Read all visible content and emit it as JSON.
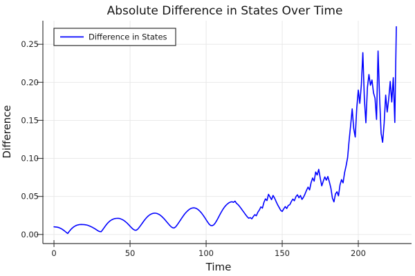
{
  "title": "Absolute Difference in States Over Time",
  "axes": {
    "x_label": "Time",
    "y_label": "Difference"
  },
  "legend": {
    "label": "Difference in States"
  },
  "colors": {
    "line": "#0000ff",
    "grid": "#e6e6e6",
    "axis": "#383838",
    "text": "#212121",
    "background": "#ffffff"
  },
  "chart_data": {
    "type": "line",
    "title": "Absolute Difference in States Over Time",
    "xlabel": "Time",
    "ylabel": "Difference",
    "xlim": [
      -7.3,
      235
    ],
    "ylim": [
      -0.012,
      0.281
    ],
    "x_ticks": [
      0,
      50,
      100,
      150,
      200
    ],
    "x_tick_labels": [
      "0",
      "50",
      "100",
      "150",
      "200"
    ],
    "y_ticks": [
      0,
      0.05,
      0.1,
      0.15,
      0.2,
      0.25
    ],
    "y_tick_labels": [
      "0.00",
      "0.05",
      "0.10",
      "0.15",
      "0.20",
      "0.25"
    ],
    "grid": true,
    "legend_position": "top-left",
    "series": [
      {
        "name": "Difference in States",
        "color": "#0000ff",
        "t_start": 0,
        "t_step": 1,
        "values": [
          0.01,
          0.0099,
          0.0096,
          0.0091,
          0.0083,
          0.0073,
          0.006,
          0.0045,
          0.0028,
          0.0012,
          0.004,
          0.0064,
          0.0084,
          0.01,
          0.0112,
          0.0121,
          0.0127,
          0.013,
          0.0131,
          0.013,
          0.0129,
          0.0126,
          0.0121,
          0.0114,
          0.0106,
          0.0096,
          0.0085,
          0.0073,
          0.006,
          0.0047,
          0.0038,
          0.0036,
          0.0062,
          0.009,
          0.0117,
          0.0142,
          0.0163,
          0.018,
          0.0193,
          0.0202,
          0.0208,
          0.0211,
          0.0212,
          0.021,
          0.0204,
          0.0195,
          0.0183,
          0.0168,
          0.015,
          0.013,
          0.0109,
          0.0088,
          0.007,
          0.0058,
          0.0055,
          0.0068,
          0.0092,
          0.0119,
          0.0147,
          0.0175,
          0.0201,
          0.0224,
          0.0243,
          0.0258,
          0.0269,
          0.0276,
          0.028,
          0.0279,
          0.0274,
          0.0264,
          0.0251,
          0.0234,
          0.0214,
          0.0192,
          0.0168,
          0.0144,
          0.0121,
          0.0101,
          0.0088,
          0.0085,
          0.01,
          0.0126,
          0.0155,
          0.0185,
          0.0215,
          0.0244,
          0.0271,
          0.0294,
          0.0314,
          0.033,
          0.0342,
          0.0348,
          0.035,
          0.0346,
          0.0337,
          0.0323,
          0.0304,
          0.0281,
          0.0254,
          0.0225,
          0.0194,
          0.0163,
          0.0135,
          0.0118,
          0.0115,
          0.0126,
          0.015,
          0.0183,
          0.022,
          0.0258,
          0.0295,
          0.0329,
          0.0358,
          0.0382,
          0.0401,
          0.0416,
          0.0426,
          0.043,
          0.0422,
          0.0438,
          0.0408,
          0.0392,
          0.0368,
          0.0342,
          0.0314,
          0.0286,
          0.0258,
          0.0233,
          0.0213,
          0.0222,
          0.0205,
          0.0235,
          0.026,
          0.0246,
          0.0292,
          0.0322,
          0.0363,
          0.0345,
          0.0422,
          0.0468,
          0.0445,
          0.0528,
          0.0492,
          0.0458,
          0.0512,
          0.0478,
          0.0432,
          0.039,
          0.0354,
          0.0318,
          0.0302,
          0.0336,
          0.0366,
          0.0341,
          0.0382,
          0.0391,
          0.0432,
          0.0465,
          0.0443,
          0.0496,
          0.0521,
          0.0482,
          0.0512,
          0.0461,
          0.049,
          0.0532,
          0.0581,
          0.0622,
          0.0586,
          0.0682,
          0.0742,
          0.0701,
          0.0821,
          0.0782,
          0.0856,
          0.0741,
          0.0638,
          0.0701,
          0.0756,
          0.0714,
          0.0762,
          0.069,
          0.0608,
          0.0478,
          0.0428,
          0.0532,
          0.0561,
          0.0508,
          0.0652,
          0.0721,
          0.0678,
          0.0812,
          0.0902,
          0.1012,
          0.1242,
          0.1438,
          0.1651,
          0.1392,
          0.1281,
          0.1662,
          0.1898,
          0.1723,
          0.1961,
          0.239,
          0.1782,
          0.1468,
          0.1932,
          0.2102,
          0.1961,
          0.203,
          0.1862,
          0.1791,
          0.1512,
          0.2412,
          0.1802,
          0.133,
          0.1212,
          0.1462,
          0.1832,
          0.161,
          0.1782,
          0.2011,
          0.1741,
          0.2062,
          0.1472,
          0.2731
        ]
      }
    ]
  }
}
